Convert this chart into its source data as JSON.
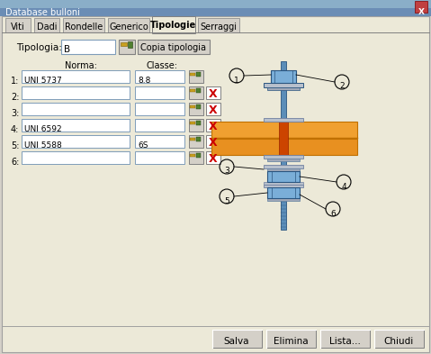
{
  "title": "Database bulloni",
  "bg_color": "#d4d0c8",
  "dialog_bg": "#ece9d8",
  "inner_bg": "#d9d6cd",
  "tabs": [
    "Viti",
    "Dadi",
    "Rondelle",
    "Generico",
    "Tipologie",
    "Serraggi"
  ],
  "active_tab": "Tipologie",
  "tipologia_label": "Tipologia:",
  "tipologia_value": "B",
  "copia_btn": "Copia tipologia",
  "norma_label": "Norma:",
  "classe_label": "Classe:",
  "rows": [
    {
      "num": "1:",
      "norma": "UNI 5737",
      "classe": "8.8",
      "has_x": false
    },
    {
      "num": "2:",
      "norma": "",
      "classe": "",
      "has_x": true
    },
    {
      "num": "3:",
      "norma": "",
      "classe": "",
      "has_x": true
    },
    {
      "num": "4:",
      "norma": "UNI 6592",
      "classe": "",
      "has_x": true
    },
    {
      "num": "5:",
      "norma": "UNI 5588",
      "classe": "6S",
      "has_x": true
    },
    {
      "num": "6:",
      "norma": "",
      "classe": "",
      "has_x": true
    }
  ],
  "bottom_buttons": [
    "Salva",
    "Elimina",
    "Lista...",
    "Chiudi"
  ],
  "titlebar_color": "#6b8db5",
  "titlebar_dark": "#4a6fa5",
  "input_bg": "#ffffff",
  "input_border": "#7f9db9",
  "btn_bg": "#d4d0c8",
  "tab_inactive": "#d4d0c8",
  "orange1": "#f0a030",
  "orange2": "#e89020",
  "bolt_blue1": "#7aaed8",
  "bolt_blue2": "#5b8db8",
  "bolt_dark": "#2a5580",
  "bolt_mid": "#4a7da8",
  "washer_color": "#8898b0",
  "plate_color": "#b8c0cc"
}
